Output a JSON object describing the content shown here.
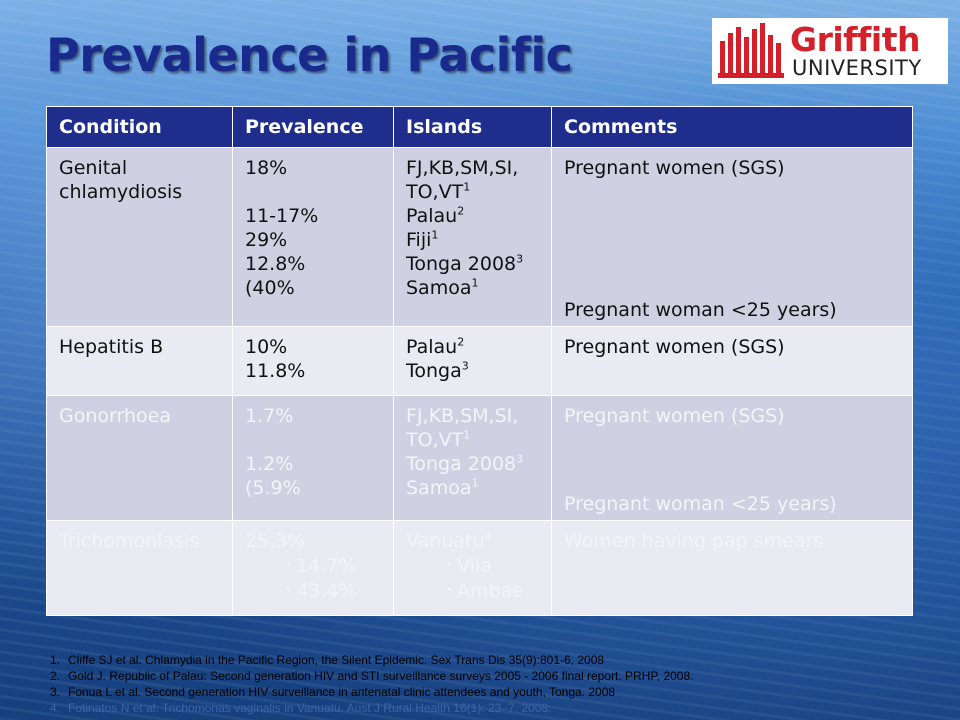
{
  "title": "Prevalence in Pacific",
  "logo": {
    "name": "Griffith",
    "sub": "UNIVERSITY"
  },
  "table": {
    "headers": [
      "Condition",
      "Prevalence",
      "Islands",
      "Comments"
    ],
    "rows": [
      {
        "condition": [
          "Genital",
          "chlamydiosis"
        ],
        "prevalence": [
          "18%",
          "",
          "11-17%",
          "29%",
          "12.8%",
          "(40%"
        ],
        "islands": [
          {
            "text": "FJ,KB,SM,SI,",
            "sup": ""
          },
          {
            "text": "TO,VT",
            "sup": "1"
          },
          {
            "text": "Palau",
            "sup": "2"
          },
          {
            "text": "Fiji",
            "sup": "1"
          },
          {
            "text": "Tonga 2008",
            "sup": "3"
          },
          {
            "text": "Samoa",
            "sup": "1"
          }
        ],
        "comment_top": "Pregnant women (SGS)",
        "comment_bottom": "Pregnant woman <25 years)"
      },
      {
        "condition": [
          "Hepatitis B"
        ],
        "prevalence": [
          "10%",
          "11.8%"
        ],
        "islands": [
          {
            "text": "Palau",
            "sup": "2"
          },
          {
            "text": "Tonga",
            "sup": "3"
          }
        ],
        "comment_top": "Pregnant women (SGS)"
      },
      {
        "condition": [
          "Gonorrhoea"
        ],
        "prevalence": [
          "1.7%",
          "",
          "1.2%",
          "(5.9%"
        ],
        "islands": [
          {
            "text": "FJ,KB,SM,SI,",
            "sup": ""
          },
          {
            "text": "TO,VT",
            "sup": "1"
          },
          {
            "text": "Tonga 2008",
            "sup": "3"
          },
          {
            "text": "Samoa",
            "sup": "1"
          }
        ],
        "comment_top": "Pregnant women (SGS)",
        "comment_bottom": "Pregnant woman <25 years)"
      },
      {
        "condition": [
          "Trichomoniasis"
        ],
        "prevalence": [
          "25.3%"
        ],
        "prevalence_bullets": [
          "14.7%",
          "43.4%"
        ],
        "islands": [
          {
            "text": "Vanuatu",
            "sup": "4"
          }
        ],
        "island_bullets": [
          "Vila",
          "Ambae"
        ],
        "comment_top": "Women having pap smears"
      }
    ]
  },
  "references": [
    {
      "num": "1.",
      "text": "Cliffe SJ et al. Chlamydia in the Pacific Region, the Silent Epidemic.  Sex Trans Dis 35(9):801-6, 2008"
    },
    {
      "num": "2.",
      "text": "Gold J. Republic of Palau: Second generation HIV and STI surveillance surveys 2005 - 2006 final report.  PRHP, 2008."
    },
    {
      "num": "3.",
      "text": "Fonua L et al. Second generation HIV surveillance in antenatal clinic attendees and youth, Tonga. 2008"
    },
    {
      "num": "4.",
      "text": "Fotinatos N et al. Trichomonas vaginalis in Vanuatu. Aust J Rural Health 16(1): 23–7, 2008."
    }
  ],
  "colors": {
    "title": "#1a2a8c",
    "header_bg": "#1f2d8c",
    "row_dark": "#cfd1e3",
    "row_light": "#e9eaf2",
    "logo_red": "#d4202a"
  }
}
